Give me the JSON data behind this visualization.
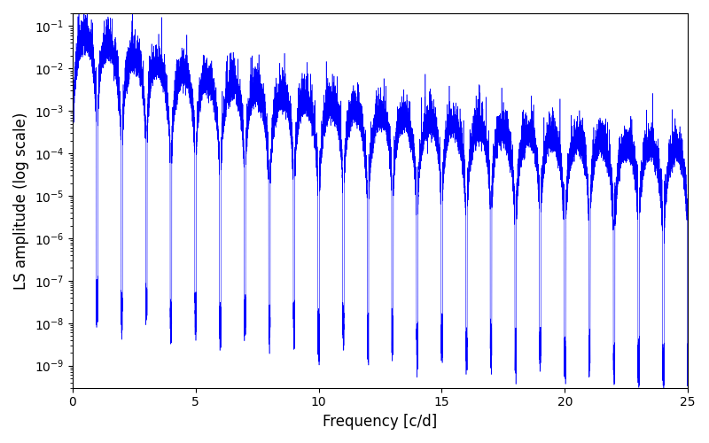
{
  "xlabel": "Frequency [c/d]",
  "ylabel": "LS amplitude (log scale)",
  "line_color": "#0000ff",
  "xlim": [
    0,
    25
  ],
  "ylim": [
    3e-10,
    0.2
  ],
  "freq_max": 25.0,
  "n_points": 20000,
  "figsize": [
    8.0,
    5.0
  ],
  "dpi": 100
}
